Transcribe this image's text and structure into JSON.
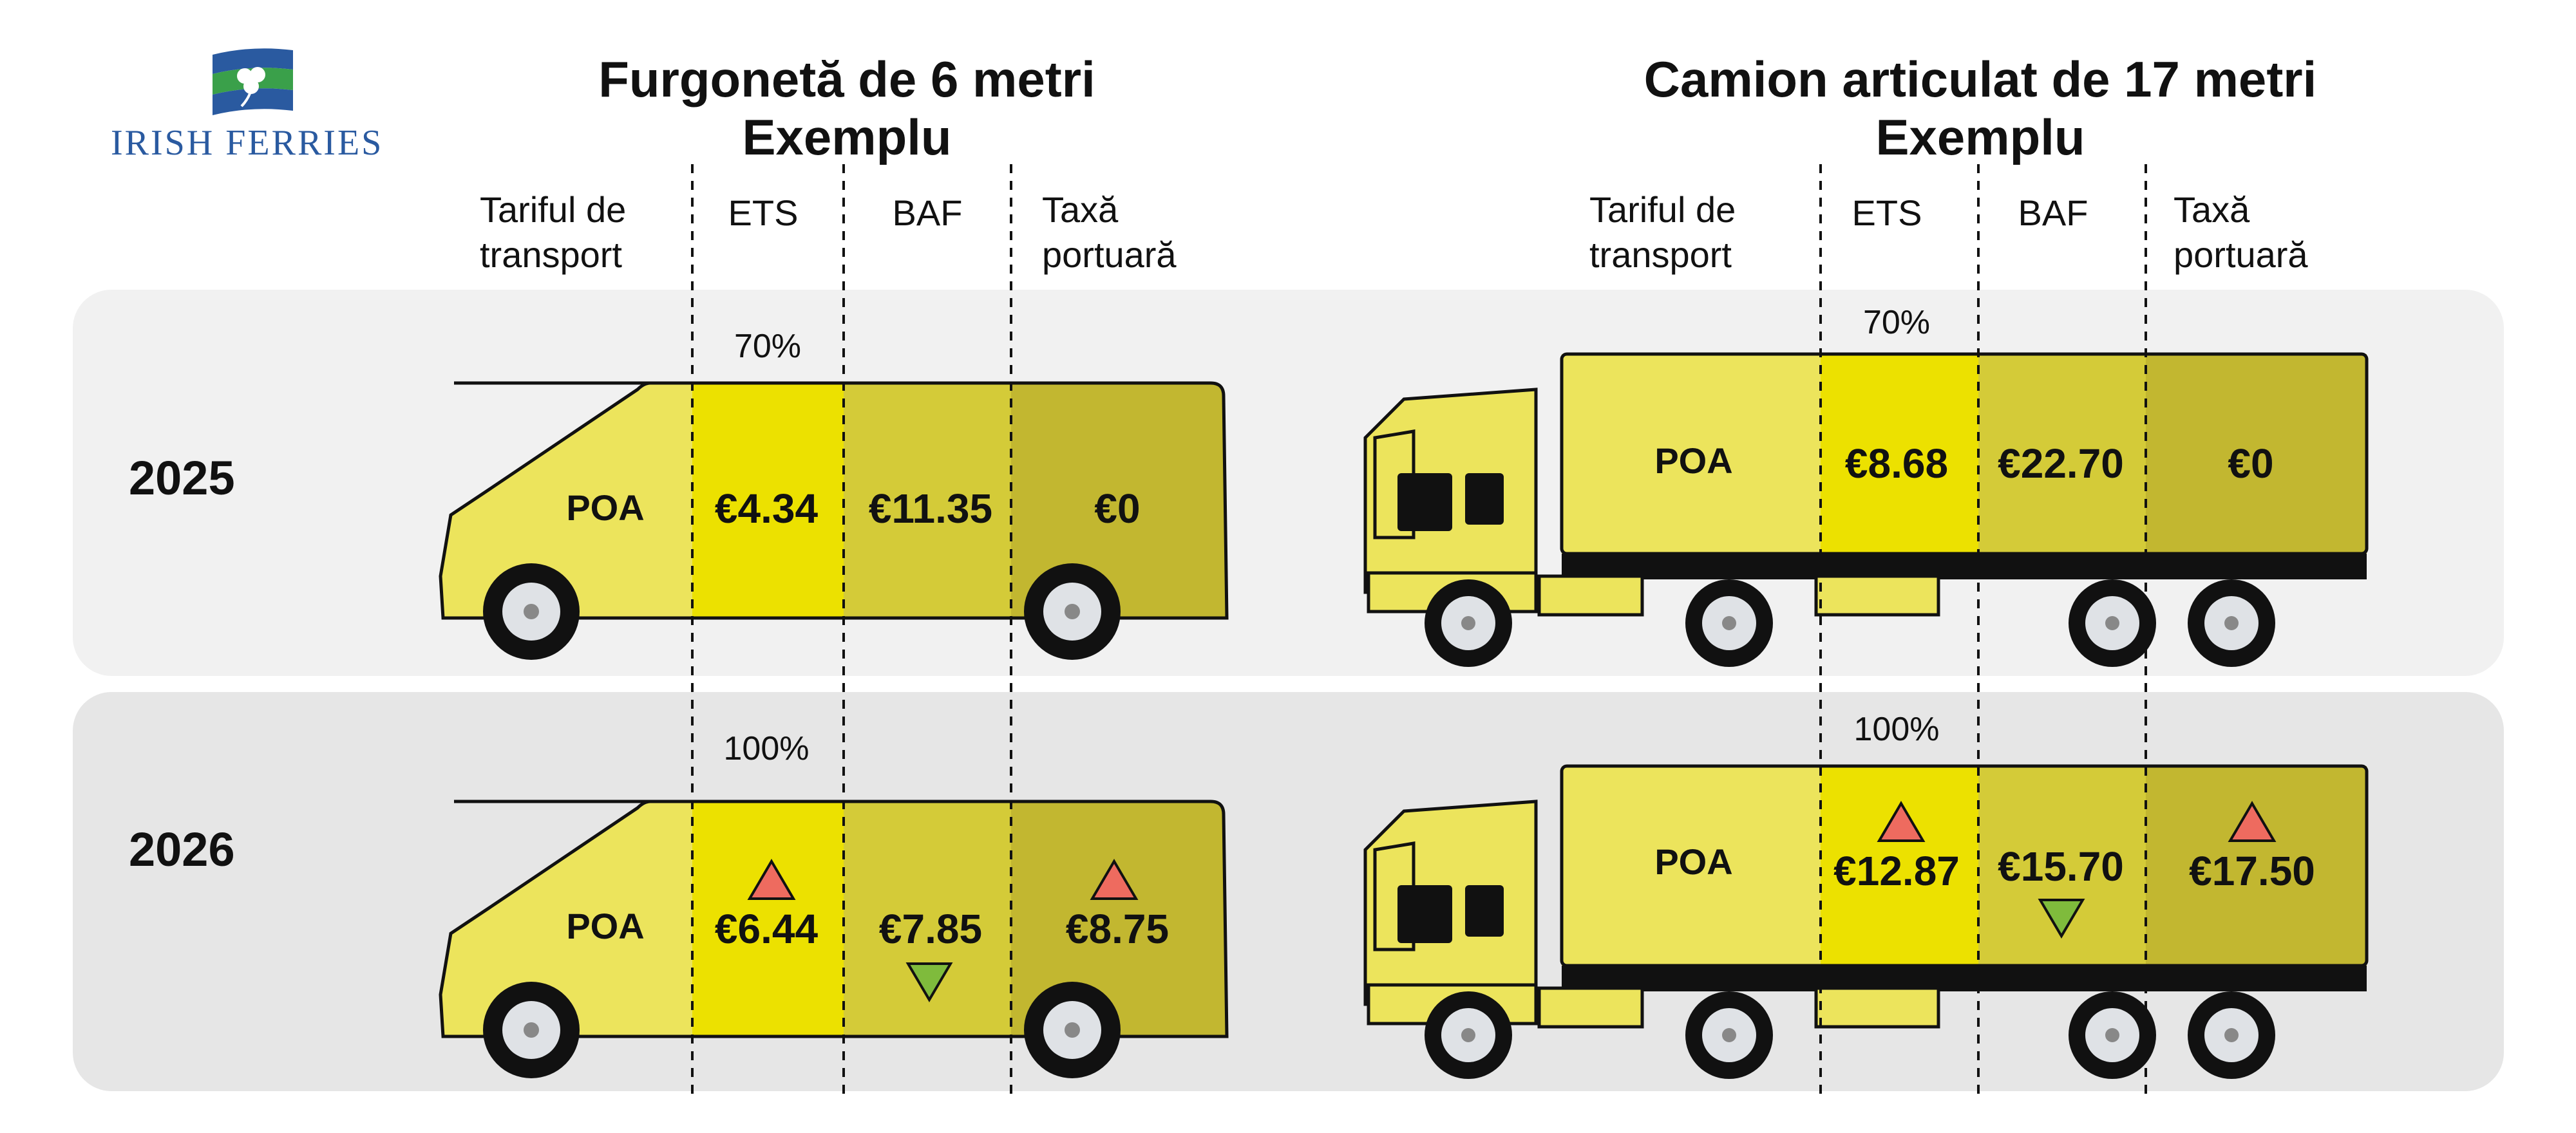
{
  "brand": {
    "name": "IRISH FERRIES",
    "colors": {
      "blue": "#2a5aa0",
      "green": "#3aa04a"
    }
  },
  "colors": {
    "freight": "#ece45c",
    "ets": "#ece100",
    "baf": "#d4cb38",
    "port": "#c2b730",
    "row_2025": "#f1f1f1",
    "row_2026": "#e6e6e6",
    "up": "#ee6b5f",
    "down": "#7fbb3c"
  },
  "van": {
    "title_line1": "Furgonetă de 6 metri",
    "title_line2": "Exemplu",
    "headers": {
      "freight_line1": "Tariful de",
      "freight_line2": "transport",
      "ets": "ETS",
      "baf": "BAF",
      "port_line1": "Taxă",
      "port_line2": "portuară"
    },
    "row_2025": {
      "pct": "70%",
      "freight": "POA",
      "ets": "€4.34",
      "baf": "€11.35",
      "port": "€0"
    },
    "row_2026": {
      "pct": "100%",
      "freight": "POA",
      "ets": "€6.44",
      "baf": "€7.85",
      "port": "€8.75",
      "ets_trend": "up",
      "baf_trend": "down",
      "port_trend": "up"
    }
  },
  "truck": {
    "title_line1": "Camion articulat de 17 metri",
    "title_line2": "Exemplu",
    "headers": {
      "freight_line1": "Tariful de",
      "freight_line2": "transport",
      "ets": "ETS",
      "baf": "BAF",
      "port_line1": "Taxă",
      "port_line2": "portuară"
    },
    "row_2025": {
      "pct": "70%",
      "freight": "POA",
      "ets": "€8.68",
      "baf": "€22.70",
      "port": "€0"
    },
    "row_2026": {
      "pct": "100%",
      "freight": "POA",
      "ets": "€12.87",
      "baf": "€15.70",
      "port": "€17.50",
      "ets_trend": "up",
      "baf_trend": "down",
      "port_trend": "up"
    }
  },
  "years": {
    "y2025": "2025",
    "y2026": "2026"
  }
}
